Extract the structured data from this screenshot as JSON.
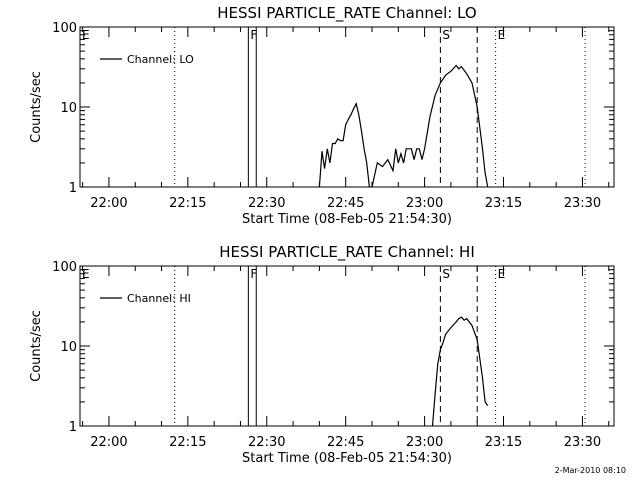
{
  "chart_data": [
    {
      "type": "line",
      "title": "HESSI PARTICLE_RATE Channel: LO",
      "xlabel": "Start Time (08-Feb-05 21:54:30)",
      "ylabel": "Counts/sec",
      "yscale": "log",
      "ylim": [
        1,
        100
      ],
      "xlim": [
        "21:54:30",
        "23:36:00"
      ],
      "xticks": [
        "22:00",
        "22:15",
        "22:30",
        "22:45",
        "23:00",
        "23:15",
        "23:30"
      ],
      "yticks": [
        "1",
        "10",
        "100"
      ],
      "legend": {
        "placement": "top-left",
        "label": "Channel: LO"
      },
      "grid": false,
      "series": [
        {
          "name": "Channel: LO",
          "x": [
            "22:40:00",
            "22:40:30",
            "22:41:00",
            "22:41:30",
            "22:42:00",
            "22:42:30",
            "22:43:00",
            "22:43:30",
            "22:44:00",
            "22:44:30",
            "22:45:00",
            "22:45:30",
            "22:46:00",
            "22:46:30",
            "22:47:00",
            "22:47:30",
            "22:48:00",
            "22:48:30",
            "22:49:00",
            "22:49:30",
            "22:50:00",
            "22:51:00",
            "22:52:00",
            "22:53:00",
            "22:54:00",
            "22:54:30",
            "22:55:00",
            "22:55:30",
            "22:56:00",
            "22:56:30",
            "22:57:00",
            "22:57:30",
            "22:58:00",
            "22:58:30",
            "22:59:00",
            "22:59:30",
            "23:00:00",
            "23:01:00",
            "23:02:00",
            "23:03:00",
            "23:04:00",
            "23:05:00",
            "23:06:00",
            "23:06:30",
            "23:07:00",
            "23:08:00",
            "23:09:00",
            "23:10:00",
            "23:11:00",
            "23:11:30",
            "23:12:00"
          ],
          "y": [
            1.0,
            2.8,
            1.7,
            3.0,
            2.0,
            3.5,
            3.5,
            4.0,
            3.8,
            3.8,
            6.0,
            7.0,
            8.0,
            9.5,
            11.0,
            8.0,
            5.0,
            3.0,
            2.0,
            1.0,
            1.0,
            2.0,
            1.8,
            2.2,
            1.6,
            3.0,
            2.0,
            2.6,
            2.0,
            3.0,
            3.0,
            3.0,
            2.2,
            3.0,
            3.0,
            2.2,
            3.0,
            7.5,
            14.0,
            20.0,
            25.0,
            28.0,
            33.0,
            30.0,
            32.0,
            26.0,
            20.0,
            10.0,
            3.0,
            1.5,
            1.0
          ]
        }
      ],
      "annotations": [
        "E",
        "F",
        "S",
        "E"
      ],
      "markers": [
        {
          "label": "E",
          "time": "21:54:30",
          "style": "dotted"
        },
        {
          "time": "22:12:30",
          "style": "dotted"
        },
        {
          "label": "F",
          "time": "22:26:30",
          "style": "solid"
        },
        {
          "time": "22:28:00",
          "style": "solid"
        },
        {
          "label": "S",
          "time": "23:03:00",
          "style": "dashed"
        },
        {
          "time": "23:10:00",
          "style": "dashed"
        },
        {
          "label": "E",
          "time": "23:13:30",
          "style": "dotted"
        },
        {
          "time": "23:30:30",
          "style": "dotted"
        }
      ]
    },
    {
      "type": "line",
      "title": "HESSI PARTICLE_RATE Channel: HI",
      "xlabel": "Start Time (08-Feb-05 21:54:30)",
      "ylabel": "Counts/sec",
      "yscale": "log",
      "ylim": [
        1,
        100
      ],
      "xlim": [
        "21:54:30",
        "23:36:00"
      ],
      "xticks": [
        "22:00",
        "22:15",
        "22:30",
        "22:45",
        "23:00",
        "23:15",
        "23:30"
      ],
      "yticks": [
        "1",
        "10",
        "100"
      ],
      "legend": {
        "placement": "top-left",
        "label": "Channel: HI"
      },
      "grid": false,
      "series": [
        {
          "name": "Channel: HI",
          "x": [
            "23:01:30",
            "23:02:00",
            "23:02:30",
            "23:03:00",
            "23:03:30",
            "23:04:00",
            "23:05:00",
            "23:06:00",
            "23:06:30",
            "23:07:00",
            "23:07:30",
            "23:08:00",
            "23:09:00",
            "23:10:00",
            "23:10:30",
            "23:11:00",
            "23:11:30",
            "23:12:00"
          ],
          "y": [
            1.0,
            2.5,
            6.0,
            9.0,
            11.0,
            14.0,
            17.0,
            20.0,
            22.0,
            23.0,
            21.0,
            22.0,
            18.0,
            12.0,
            7.0,
            4.0,
            2.0,
            1.8
          ]
        }
      ],
      "annotations": [
        "E",
        "F",
        "S",
        "E"
      ],
      "markers": [
        {
          "label": "E",
          "time": "21:54:30",
          "style": "dotted"
        },
        {
          "time": "22:12:30",
          "style": "dotted"
        },
        {
          "label": "F",
          "time": "22:26:30",
          "style": "solid"
        },
        {
          "time": "22:28:00",
          "style": "solid"
        },
        {
          "label": "S",
          "time": "23:03:00",
          "style": "dashed"
        },
        {
          "time": "23:10:00",
          "style": "dashed"
        },
        {
          "label": "E",
          "time": "23:13:30",
          "style": "dotted"
        },
        {
          "time": "23:30:30",
          "style": "dotted"
        }
      ]
    }
  ],
  "footer": {
    "timestamp": "2-Mar-2010 08:10"
  }
}
